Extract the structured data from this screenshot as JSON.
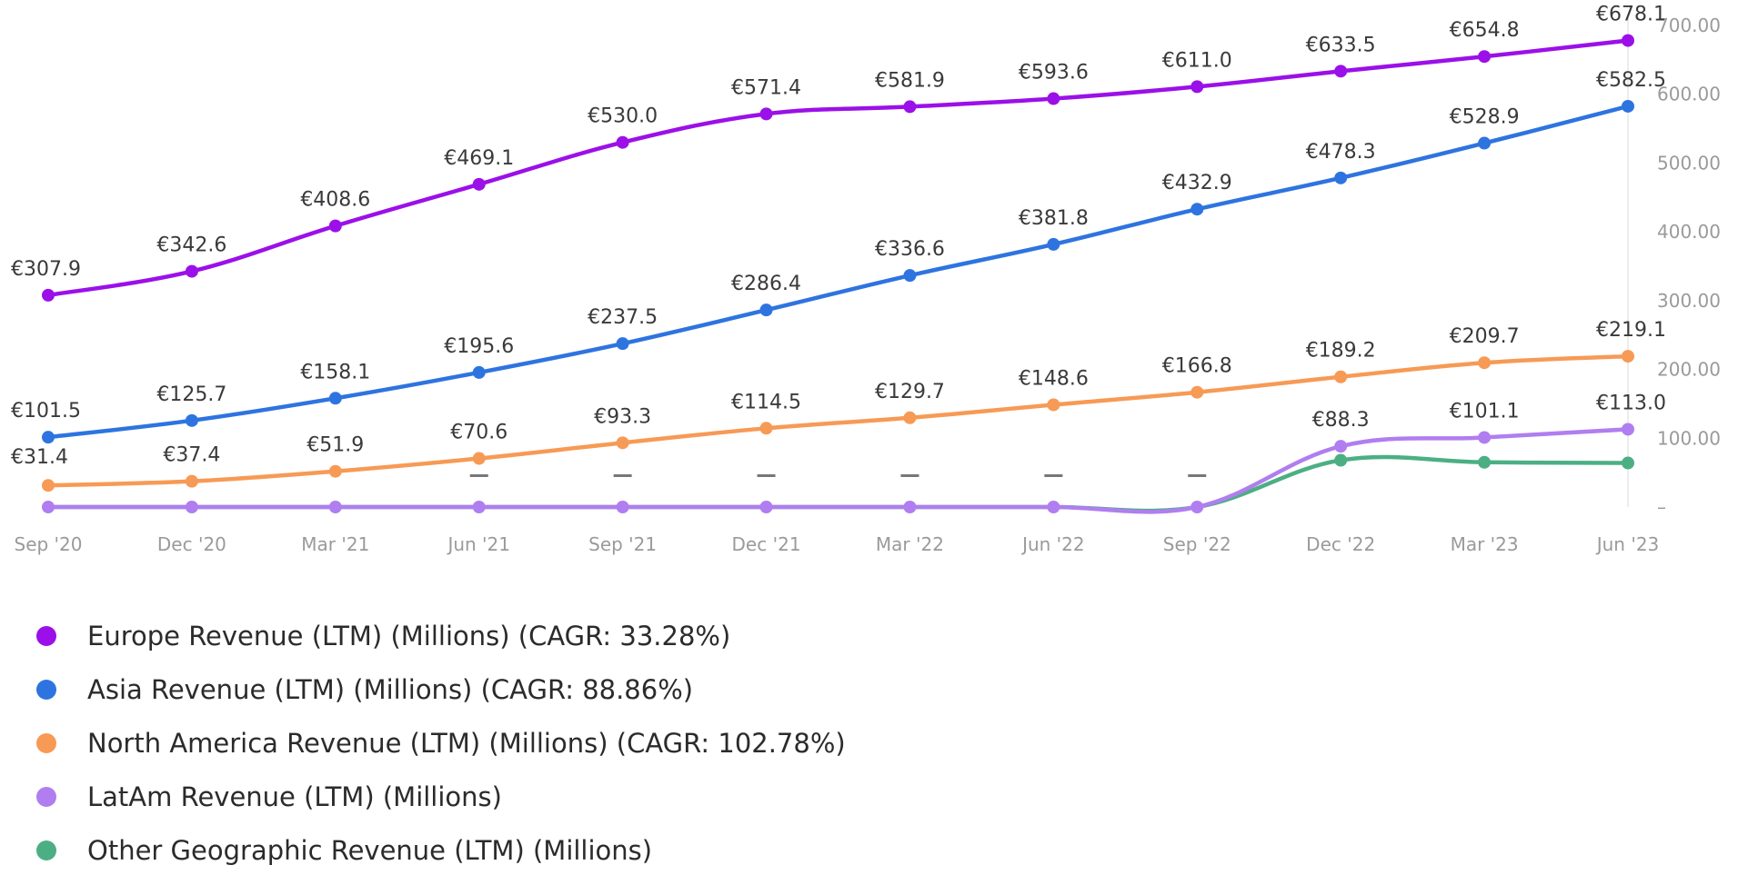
{
  "chart_data": {
    "type": "line",
    "title": "",
    "xlabel": "",
    "ylabel": "",
    "categories": [
      "Sep '20",
      "Dec '20",
      "Mar '21",
      "Jun '21",
      "Sep '21",
      "Dec '21",
      "Mar '22",
      "Jun '22",
      "Sep '22",
      "Dec '22",
      "Mar '23",
      "Jun '23"
    ],
    "y_ticks": [
      "–",
      "100.00",
      "200.00",
      "300.00",
      "400.00",
      "500.00",
      "600.00",
      "700.00"
    ],
    "ylim": [
      0,
      700
    ],
    "missing_marker": "–",
    "series": [
      {
        "name": "Europe Revenue (LTM) (Millions)",
        "legend": "Europe Revenue (LTM) (Millions) (CAGR: 33.28%)",
        "color": "#9b10e8",
        "values": [
          307.9,
          342.6,
          408.6,
          469.1,
          530.0,
          571.4,
          581.9,
          593.6,
          611.0,
          633.5,
          654.8,
          678.1
        ],
        "labels": [
          "€307.9",
          "€342.6",
          "€408.6",
          "€469.1",
          "€530.0",
          "€571.4",
          "€581.9",
          "€593.6",
          "€611.0",
          "€633.5",
          "€654.8",
          "€678.1"
        ]
      },
      {
        "name": "Asia Revenue (LTM) (Millions)",
        "legend": "Asia Revenue (LTM) (Millions) (CAGR: 88.86%)",
        "color": "#2e74e0",
        "values": [
          101.5,
          125.7,
          158.1,
          195.6,
          237.5,
          286.4,
          336.6,
          381.8,
          432.9,
          478.3,
          528.9,
          582.5
        ],
        "labels": [
          "€101.5",
          "€125.7",
          "€158.1",
          "€195.6",
          "€237.5",
          "€286.4",
          "€336.6",
          "€381.8",
          "€432.9",
          "€478.3",
          "€528.9",
          "€582.5"
        ]
      },
      {
        "name": "North America Revenue (LTM) (Millions)",
        "legend": "North America Revenue (LTM) (Millions) (CAGR: 102.78%)",
        "color": "#f79a55",
        "values": [
          31.4,
          37.4,
          51.9,
          70.6,
          93.3,
          114.5,
          129.7,
          148.6,
          166.8,
          189.2,
          209.7,
          219.1
        ],
        "labels": [
          "€31.4",
          "€37.4",
          "€51.9",
          "€70.6",
          "€93.3",
          "€114.5",
          "€129.7",
          "€148.6",
          "€166.8",
          "€189.2",
          "€209.7",
          "€219.1"
        ]
      },
      {
        "name": "LatAm Revenue (LTM) (Millions)",
        "legend": "LatAm Revenue (LTM) (Millions)",
        "color": "#b07ef0",
        "values": [
          0,
          0,
          0,
          0,
          0,
          0,
          0,
          0,
          0,
          88.3,
          101.1,
          113.0
        ],
        "labels": [
          "",
          "",
          "",
          "",
          "",
          "",
          "",
          "",
          "",
          "€88.3",
          "€101.1",
          "€113.0"
        ],
        "missing_label_indices": [
          3,
          4,
          5,
          6,
          7,
          8
        ]
      },
      {
        "name": "Other Geographic Revenue (LTM) (Millions)",
        "legend": "Other Geographic Revenue (LTM) (Millions)",
        "color": "#4caf84",
        "values": [
          0,
          0,
          0,
          0,
          0,
          0,
          0,
          0,
          0,
          68,
          65,
          64
        ],
        "labels": [
          "",
          "",
          "",
          "",
          "",
          "",
          "",
          "",
          "",
          "",
          "",
          ""
        ]
      }
    ]
  }
}
